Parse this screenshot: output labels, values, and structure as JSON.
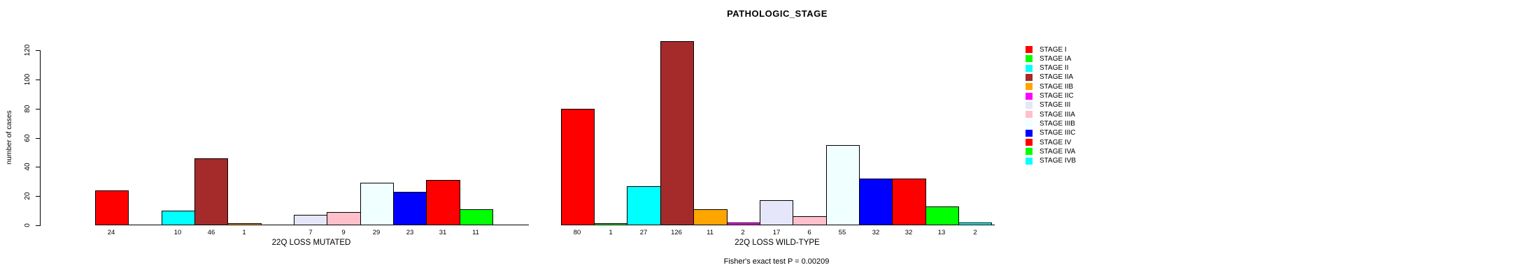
{
  "page": {
    "background": "#ffffff"
  },
  "chart_data": {
    "type": "bar",
    "title": "PATHOLOGIC_STAGE",
    "ylabel": "number of cases",
    "ylim": [
      0,
      120
    ],
    "yticks": [
      0,
      20,
      40,
      60,
      80,
      100,
      120
    ],
    "grid": false,
    "legend_position": "right",
    "categories": [
      "STAGE I",
      "STAGE IA",
      "STAGE II",
      "STAGE IIA",
      "STAGE IIB",
      "STAGE IIC",
      "STAGE III",
      "STAGE IIIA",
      "STAGE IIIB",
      "STAGE IIIC",
      "STAGE IV",
      "STAGE IVA",
      "STAGE IVB"
    ],
    "colors": [
      "#FF0000",
      "#00FF00",
      "#00FFFF",
      "#A52A2A",
      "#FFA500",
      "#FF00FF",
      "#E6E6FA",
      "#FFC0CB",
      "#F0FFFF",
      "#0000FF",
      "#FF0000",
      "#00FF00",
      "#00FFFF"
    ],
    "series": [
      {
        "name": "22Q LOSS MUTATED",
        "values": [
          24,
          0,
          10,
          46,
          1,
          0,
          7,
          9,
          29,
          23,
          31,
          11,
          0
        ]
      },
      {
        "name": "22Q LOSS WILD-TYPE",
        "values": [
          80,
          1,
          27,
          126,
          11,
          2,
          17,
          6,
          55,
          32,
          32,
          13,
          2
        ]
      }
    ],
    "value_labels": {
      "shown_below_bars": true,
      "hidden_when_zero": true
    },
    "footer": "Fisher's exact test P = 0.00209"
  }
}
